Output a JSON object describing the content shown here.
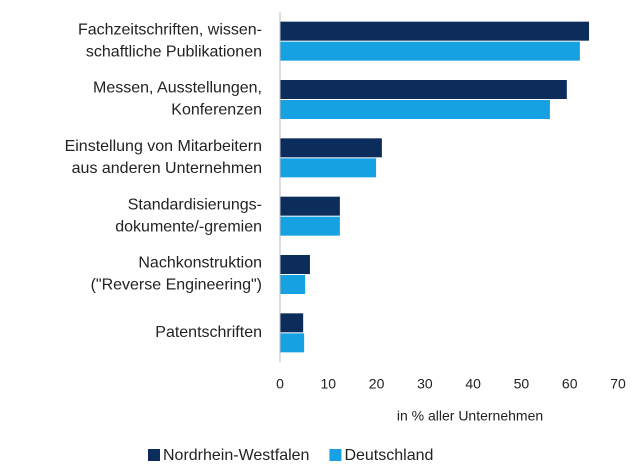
{
  "chart_data": {
    "type": "bar",
    "orientation": "horizontal",
    "categories": [
      [
        "Fachzeitschriften, wissen-",
        "schaftliche Publikationen"
      ],
      [
        "Messen, Ausstellungen,",
        "Konferenzen"
      ],
      [
        "Einstellung von Mitarbeitern",
        "aus anderen Unternehmen"
      ],
      [
        "Standardisierungs-",
        "dokumente/-gremien"
      ],
      [
        "Nachkonstruktion",
        "(\"Reverse Engineering\")"
      ],
      [
        "Patentschriften"
      ]
    ],
    "series": [
      {
        "name": "Nordrhein-Westfalen",
        "color": "#0c2d5c",
        "values": [
          64,
          59.4,
          21.1,
          12.4,
          6.2,
          4.8
        ]
      },
      {
        "name": "Deutschland",
        "color": "#16a1e3",
        "values": [
          62.1,
          55.9,
          19.9,
          12.4,
          5.2,
          5.0
        ]
      }
    ],
    "xlim": [
      0,
      70
    ],
    "xticks": [
      0,
      10,
      20,
      30,
      40,
      50,
      60,
      70
    ],
    "xlabel": "in % aller Unternehmen",
    "grid": false,
    "legend": "bottom"
  }
}
